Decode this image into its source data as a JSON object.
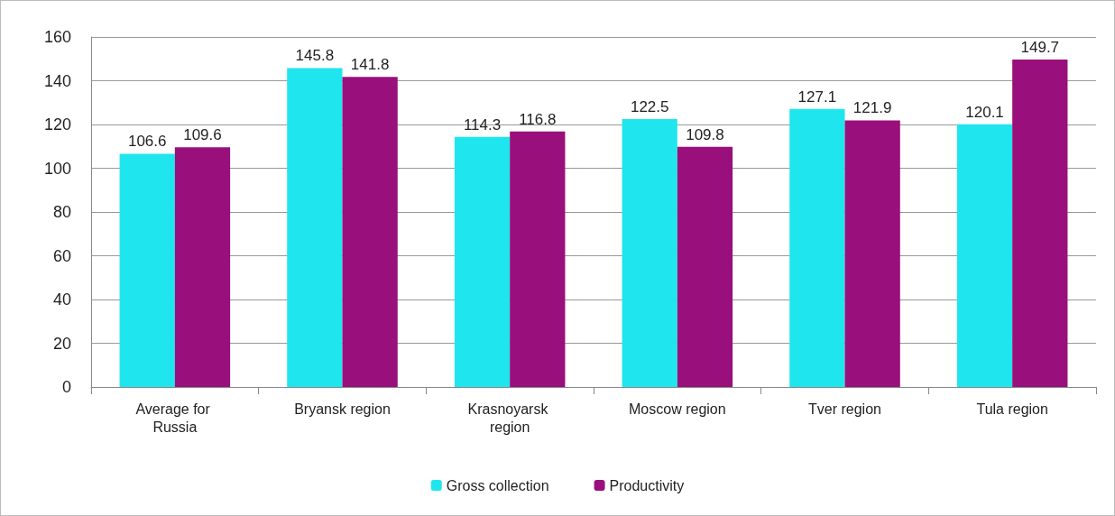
{
  "chart_data": {
    "type": "bar",
    "categories": [
      "Average for Russia",
      "Bryansk region",
      "Krasnoyarsk region",
      "Moscow region",
      "Tver region",
      "Tula region"
    ],
    "series": [
      {
        "name": "Gross collection",
        "color": "#1fe6ee",
        "values": [
          106.6,
          145.8,
          114.3,
          122.5,
          127.1,
          120.1
        ]
      },
      {
        "name": "Productivity",
        "color": "#990f7c",
        "values": [
          109.6,
          141.8,
          116.8,
          109.8,
          121.9,
          149.7
        ]
      }
    ],
    "ylim": [
      0,
      160
    ],
    "yticks": [
      0,
      20,
      40,
      60,
      80,
      100,
      120,
      140,
      160
    ],
    "grid": "y",
    "legend": "bottom",
    "data_labels": true
  }
}
